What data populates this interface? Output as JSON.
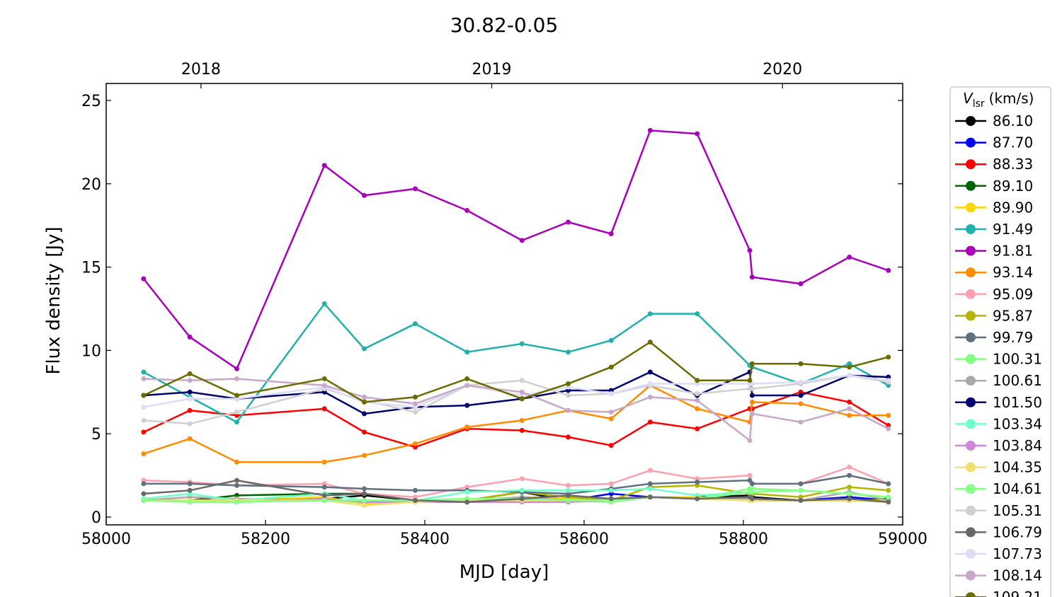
{
  "chart_data": {
    "type": "line",
    "title": "30.82-0.05",
    "xlabel": "MJD [day]",
    "ylabel": "Flux density [Jy]",
    "xlim": [
      58000,
      59000
    ],
    "ylim": [
      -0.5,
      26
    ],
    "xticks": [
      58000,
      58200,
      58400,
      58600,
      58800,
      59000
    ],
    "yticks": [
      0,
      5,
      10,
      15,
      20,
      25
    ],
    "top_axis": {
      "ticks": [
        {
          "mjd": 58119,
          "label": "2018"
        },
        {
          "mjd": 58484,
          "label": "2019"
        },
        {
          "mjd": 58849,
          "label": "2020"
        }
      ]
    },
    "grid": false,
    "legend": {
      "title_main": "V",
      "title_sub": "lsr",
      "title_unit": "(km/s)",
      "placement": "outside-right"
    },
    "x": [
      58047,
      58105,
      58164,
      58274,
      58324,
      58388,
      58453,
      58522,
      58580,
      58634,
      58683,
      58742,
      58808,
      58811,
      58872,
      58933,
      58982
    ],
    "series": [
      {
        "name": "86.10",
        "color": "#000000",
        "values": [
          1.0,
          1.0,
          1.0,
          1.1,
          1.3,
          1.0,
          1.0,
          1.5,
          1.0,
          1.0,
          1.2,
          1.2,
          1.3,
          1.2,
          1.0,
          1.2,
          1.0
        ]
      },
      {
        "name": "87.70",
        "color": "#0000ff",
        "values": [
          1.0,
          1.0,
          1.0,
          1.0,
          1.0,
          0.9,
          0.9,
          1.1,
          1.0,
          1.4,
          1.2,
          1.1,
          1.1,
          1.1,
          1.0,
          1.2,
          1.0
        ]
      },
      {
        "name": "88.33",
        "color": "#ff0000",
        "values": [
          5.1,
          6.4,
          6.1,
          6.5,
          5.1,
          4.2,
          5.3,
          5.2,
          4.8,
          4.3,
          5.7,
          5.3,
          6.5,
          6.5,
          7.5,
          6.9,
          5.5
        ]
      },
      {
        "name": "89.10",
        "color": "#006400",
        "values": [
          1.0,
          1.0,
          1.3,
          1.4,
          1.4,
          1.0,
          0.9,
          1.2,
          1.1,
          1.0,
          1.2,
          1.2,
          1.1,
          1.1,
          1.0,
          1.0,
          1.1
        ]
      },
      {
        "name": "89.90",
        "color": "#ffd700",
        "values": [
          1.0,
          1.0,
          1.0,
          1.2,
          0.8,
          0.9,
          1.0,
          1.2,
          1.1,
          1.0,
          1.2,
          1.2,
          1.0,
          1.0,
          1.0,
          1.0,
          1.0
        ]
      },
      {
        "name": "91.49",
        "color": "#20b2aa",
        "values": [
          8.7,
          7.2,
          5.7,
          12.8,
          10.1,
          11.6,
          9.9,
          10.4,
          9.9,
          10.6,
          12.2,
          12.2,
          9.1,
          9.0,
          8.0,
          9.2,
          7.9
        ]
      },
      {
        "name": "91.81",
        "color": "#aa00bb",
        "values": [
          14.3,
          10.8,
          8.9,
          21.1,
          19.3,
          19.7,
          18.4,
          16.6,
          17.7,
          17.0,
          23.2,
          23.0,
          16.0,
          14.4,
          14.0,
          15.6,
          14.8
        ]
      },
      {
        "name": "93.14",
        "color": "#ff8c00",
        "values": [
          3.8,
          4.7,
          3.3,
          3.3,
          3.7,
          4.4,
          5.4,
          5.8,
          6.4,
          5.9,
          7.9,
          6.5,
          5.7,
          6.9,
          6.8,
          6.1,
          6.1
        ]
      },
      {
        "name": "95.09",
        "color": "#ffa0b0",
        "values": [
          2.2,
          2.1,
          1.9,
          2.0,
          1.4,
          1.2,
          1.8,
          2.3,
          1.9,
          2.0,
          2.8,
          2.3,
          2.5,
          2.0,
          2.0,
          3.0,
          2.0
        ]
      },
      {
        "name": "95.87",
        "color": "#b5b500",
        "values": [
          1.0,
          1.0,
          1.0,
          1.0,
          0.9,
          0.9,
          1.0,
          1.5,
          1.2,
          1.0,
          1.8,
          1.9,
          1.4,
          1.4,
          1.2,
          1.8,
          1.6
        ]
      },
      {
        "name": "99.79",
        "color": "#5f7080",
        "values": [
          2.0,
          2.0,
          1.9,
          1.8,
          1.7,
          1.6,
          1.6,
          1.5,
          1.4,
          1.7,
          2.0,
          2.1,
          2.2,
          2.0,
          2.0,
          2.5,
          2.0
        ]
      },
      {
        "name": "100.31",
        "color": "#80ff80",
        "values": [
          1.0,
          1.0,
          0.9,
          1.0,
          0.9,
          1.0,
          1.1,
          1.0,
          1.0,
          0.9,
          1.2,
          1.1,
          1.7,
          1.7,
          1.6,
          1.4,
          1.2
        ]
      },
      {
        "name": "100.61",
        "color": "#aaaaaa",
        "values": [
          1.0,
          1.2,
          1.1,
          1.0,
          1.0,
          0.9,
          1.0,
          1.2,
          1.0,
          1.0,
          1.2,
          1.1,
          1.1,
          1.1,
          1.0,
          1.5,
          1.0
        ]
      },
      {
        "name": "101.50",
        "color": "#000070",
        "values": [
          7.3,
          7.5,
          7.1,
          7.5,
          6.2,
          6.6,
          6.7,
          7.1,
          7.6,
          7.6,
          8.7,
          7.3,
          8.7,
          7.3,
          7.3,
          8.5,
          8.4
        ]
      },
      {
        "name": "103.34",
        "color": "#70ffc8",
        "values": [
          1.1,
          1.4,
          1.0,
          1.4,
          1.0,
          1.0,
          1.5,
          1.6,
          1.6,
          1.6,
          1.7,
          1.3,
          1.5,
          1.5,
          1.6,
          1.4,
          1.2
        ]
      },
      {
        "name": "103.84",
        "color": "#d088d8",
        "values": [
          1.0,
          1.0,
          0.9,
          1.1,
          0.9,
          0.9,
          0.9,
          0.9,
          0.9,
          1.0,
          1.2,
          1.1,
          1.0,
          1.0,
          1.0,
          1.0,
          0.9
        ]
      },
      {
        "name": "104.35",
        "color": "#f0e070",
        "values": [
          1.0,
          1.0,
          1.0,
          1.0,
          0.7,
          0.9,
          1.0,
          1.0,
          1.0,
          1.0,
          1.2,
          1.1,
          1.0,
          1.0,
          1.0,
          1.0,
          0.9
        ]
      },
      {
        "name": "104.61",
        "color": "#88ff88",
        "values": [
          1.0,
          0.9,
          0.9,
          1.0,
          1.0,
          1.0,
          1.1,
          1.1,
          1.0,
          1.0,
          1.2,
          1.1,
          1.5,
          1.5,
          1.6,
          1.4,
          1.2
        ]
      },
      {
        "name": "105.31",
        "color": "#d0d0d0",
        "values": [
          5.8,
          5.6,
          6.3,
          7.7,
          7.0,
          6.3,
          7.9,
          8.2,
          7.3,
          7.4,
          7.9,
          7.4,
          7.7,
          7.7,
          8.0,
          8.5,
          8.1
        ]
      },
      {
        "name": "106.79",
        "color": "#696969",
        "values": [
          1.4,
          1.6,
          2.2,
          1.3,
          1.4,
          1.0,
          0.9,
          1.1,
          1.3,
          1.1,
          1.2,
          1.1,
          1.2,
          1.1,
          1.0,
          1.1,
          0.9
        ]
      },
      {
        "name": "107.73",
        "color": "#dcdcf5",
        "values": [
          6.6,
          7.1,
          7.1,
          7.8,
          6.9,
          6.6,
          7.9,
          7.3,
          7.8,
          7.4,
          8.0,
          8.0,
          8.0,
          8.0,
          8.1,
          8.5,
          8.2
        ]
      },
      {
        "name": "108.14",
        "color": "#c8a8c8",
        "values": [
          8.3,
          8.2,
          8.3,
          7.9,
          7.2,
          6.8,
          7.9,
          7.5,
          6.4,
          6.3,
          7.2,
          7.0,
          4.6,
          6.2,
          5.7,
          6.5,
          5.3
        ]
      },
      {
        "name": "109.21",
        "color": "#6b6b00",
        "values": [
          7.3,
          8.6,
          7.3,
          8.3,
          6.9,
          7.2,
          8.3,
          7.1,
          8.0,
          9.0,
          10.5,
          8.2,
          8.2,
          9.2,
          9.2,
          9.0,
          9.6
        ]
      }
    ]
  }
}
